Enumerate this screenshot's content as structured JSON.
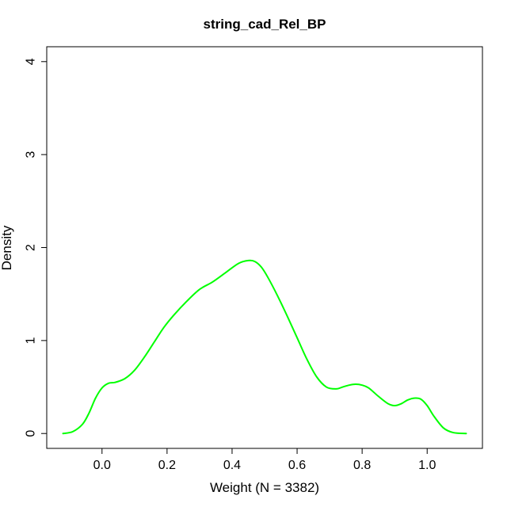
{
  "chart_data": {
    "type": "line",
    "title": "string_cad_Rel_BP",
    "xlabel": "Weight (N = 3382)",
    "ylabel": "Density",
    "xlim": [
      -0.17,
      1.17
    ],
    "ylim": [
      -0.16,
      4.16
    ],
    "xticks": [
      0.0,
      0.2,
      0.4,
      0.6,
      0.8,
      1.0
    ],
    "xtick_labels": [
      "0.0",
      "0.2",
      "0.4",
      "0.6",
      "0.8",
      "1.0"
    ],
    "yticks": [
      0,
      1,
      2,
      3,
      4
    ],
    "ytick_labels": [
      "0",
      "1",
      "2",
      "3",
      "4"
    ],
    "grid": false,
    "series": [
      {
        "color": "#00ff00",
        "x": [
          -0.12,
          -0.09,
          -0.06,
          -0.04,
          -0.02,
          0.0,
          0.02,
          0.04,
          0.07,
          0.1,
          0.13,
          0.16,
          0.19,
          0.22,
          0.26,
          0.3,
          0.34,
          0.38,
          0.42,
          0.45,
          0.47,
          0.49,
          0.51,
          0.54,
          0.57,
          0.6,
          0.63,
          0.66,
          0.69,
          0.72,
          0.74,
          0.76,
          0.78,
          0.8,
          0.82,
          0.85,
          0.88,
          0.9,
          0.92,
          0.94,
          0.96,
          0.98,
          1.0,
          1.02,
          1.05,
          1.08,
          1.12
        ],
        "y": [
          0.0,
          0.02,
          0.1,
          0.22,
          0.38,
          0.49,
          0.54,
          0.55,
          0.59,
          0.68,
          0.82,
          0.98,
          1.14,
          1.27,
          1.42,
          1.55,
          1.63,
          1.73,
          1.83,
          1.86,
          1.85,
          1.79,
          1.68,
          1.48,
          1.26,
          1.03,
          0.8,
          0.61,
          0.5,
          0.48,
          0.5,
          0.52,
          0.53,
          0.52,
          0.49,
          0.4,
          0.32,
          0.3,
          0.32,
          0.36,
          0.38,
          0.37,
          0.3,
          0.19,
          0.06,
          0.01,
          0.0
        ]
      }
    ]
  }
}
